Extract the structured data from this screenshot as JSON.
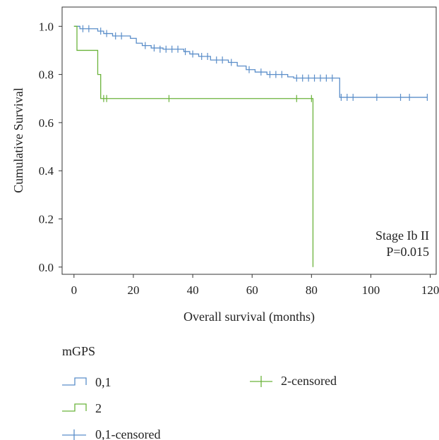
{
  "chart_data": {
    "type": "line",
    "subtype": "kaplan-meier",
    "xlabel": "Overall survival (months)",
    "ylabel": "Cumulative Survival",
    "xlim": [
      -4,
      122
    ],
    "ylim": [
      -0.03,
      1.08
    ],
    "xticks": [
      0,
      20,
      40,
      60,
      80,
      100,
      120
    ],
    "yticks": [
      0.0,
      0.2,
      0.4,
      0.6,
      0.8,
      1.0
    ],
    "ytick_labels": [
      "0.0",
      "0.2",
      "0.4",
      "0.6",
      "0.8",
      "1.0"
    ],
    "grid": false,
    "annotations": [
      "Stage Ib II",
      "P=0.015"
    ],
    "legend": {
      "title": "mGPS",
      "placement": "bottom",
      "entries": [
        "0,1",
        "2",
        "0,1-censored",
        "2-censored"
      ]
    },
    "series": [
      {
        "name": "0,1",
        "color": "#5b8ec9",
        "steps": [
          [
            0,
            1.0
          ],
          [
            2,
            0.99
          ],
          [
            8,
            0.98
          ],
          [
            10,
            0.97
          ],
          [
            13,
            0.96
          ],
          [
            19,
            0.95
          ],
          [
            21,
            0.93
          ],
          [
            23,
            0.92
          ],
          [
            26,
            0.91
          ],
          [
            30,
            0.905
          ],
          [
            37,
            0.895
          ],
          [
            39,
            0.885
          ],
          [
            42,
            0.875
          ],
          [
            46,
            0.86
          ],
          [
            52,
            0.85
          ],
          [
            55,
            0.835
          ],
          [
            58,
            0.82
          ],
          [
            61,
            0.81
          ],
          [
            65,
            0.8
          ],
          [
            72,
            0.79
          ],
          [
            74,
            0.785
          ],
          [
            89.5,
            0.705
          ],
          [
            119,
            0.705
          ]
        ],
        "censored": [
          [
            3,
            0.99
          ],
          [
            5,
            0.99
          ],
          [
            9,
            0.98
          ],
          [
            11,
            0.97
          ],
          [
            14,
            0.96
          ],
          [
            16,
            0.96
          ],
          [
            24,
            0.92
          ],
          [
            27,
            0.91
          ],
          [
            29,
            0.905
          ],
          [
            31,
            0.905
          ],
          [
            33,
            0.905
          ],
          [
            35,
            0.905
          ],
          [
            37.5,
            0.895
          ],
          [
            40,
            0.885
          ],
          [
            43,
            0.875
          ],
          [
            45,
            0.875
          ],
          [
            48,
            0.86
          ],
          [
            50,
            0.86
          ],
          [
            53,
            0.85
          ],
          [
            59,
            0.82
          ],
          [
            63,
            0.81
          ],
          [
            66,
            0.8
          ],
          [
            68,
            0.8
          ],
          [
            70,
            0.8
          ],
          [
            75,
            0.785
          ],
          [
            77,
            0.785
          ],
          [
            79,
            0.785
          ],
          [
            81,
            0.785
          ],
          [
            83,
            0.785
          ],
          [
            85,
            0.785
          ],
          [
            87,
            0.785
          ],
          [
            90,
            0.705
          ],
          [
            92,
            0.705
          ],
          [
            94,
            0.705
          ],
          [
            102,
            0.705
          ],
          [
            110,
            0.705
          ],
          [
            113,
            0.705
          ],
          [
            119,
            0.705
          ]
        ]
      },
      {
        "name": "2",
        "color": "#6bb33b",
        "steps": [
          [
            0,
            1.0
          ],
          [
            1,
            0.9
          ],
          [
            8,
            0.8
          ],
          [
            9,
            0.7
          ],
          [
            80.5,
            0.0
          ]
        ],
        "censored": [
          [
            10,
            0.7
          ],
          [
            11,
            0.7
          ],
          [
            32,
            0.7
          ],
          [
            75,
            0.7
          ],
          [
            80,
            0.7
          ]
        ]
      }
    ]
  }
}
